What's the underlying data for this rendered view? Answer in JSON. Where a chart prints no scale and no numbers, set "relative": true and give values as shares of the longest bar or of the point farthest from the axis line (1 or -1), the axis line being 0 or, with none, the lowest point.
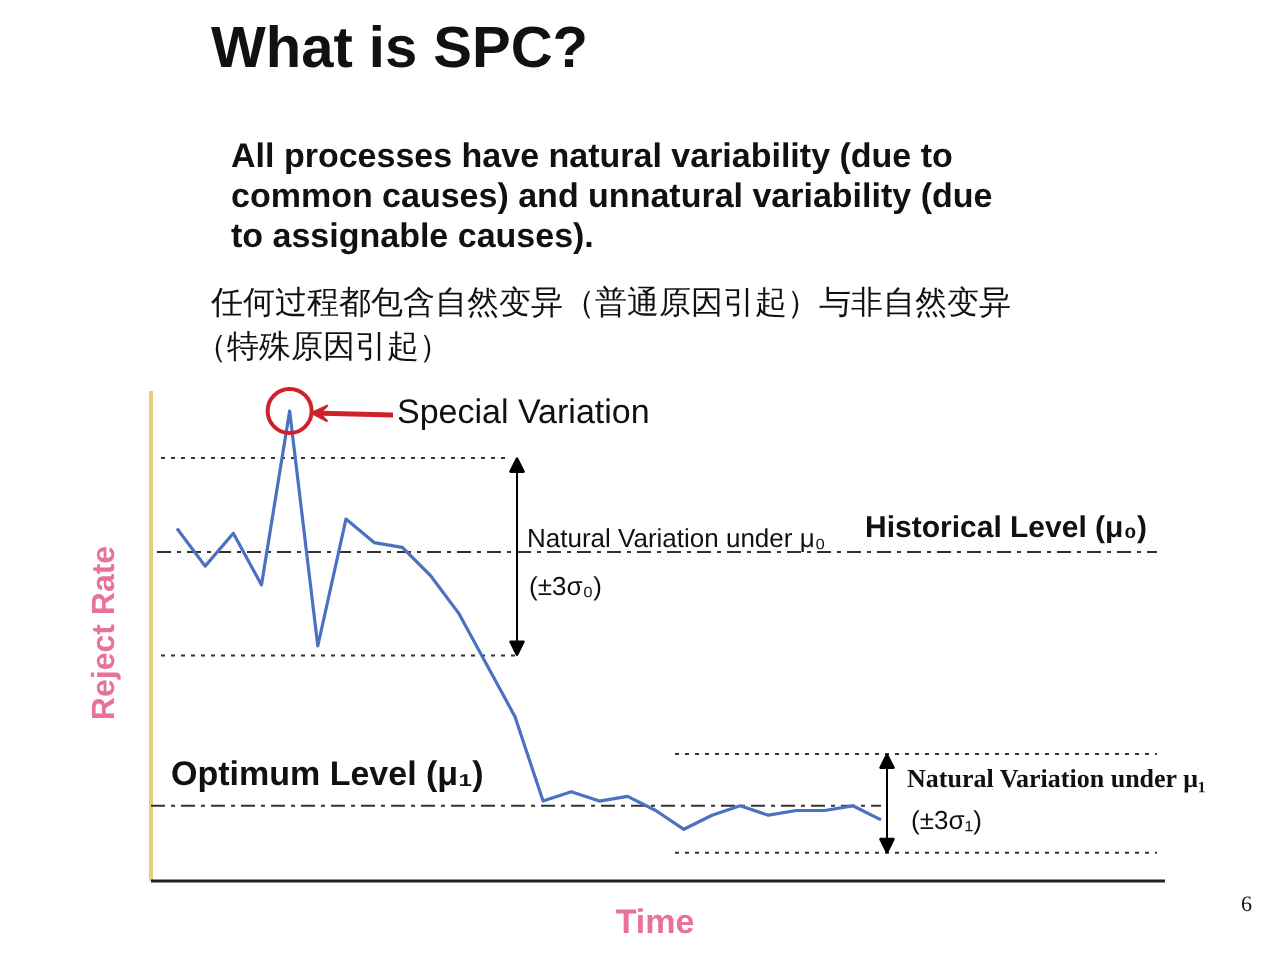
{
  "chart_data": {
    "type": "line",
    "title": "What is SPC?",
    "xlabel": "Time",
    "ylabel": "Reject Rate",
    "relative": true,
    "categories": [
      null,
      null,
      null,
      null,
      null,
      null,
      null,
      null,
      null,
      null,
      null,
      null,
      null,
      null,
      null,
      null,
      null,
      null,
      null,
      null,
      null,
      null,
      null,
      null,
      null,
      null
    ],
    "series": [
      {
        "color": "#4a72c0",
        "values": [
          0.75,
          0.67,
          0.74,
          0.63,
          1.0,
          0.5,
          0.77,
          0.72,
          0.71,
          0.65,
          0.57,
          0.46,
          0.35,
          0.17,
          0.19,
          0.17,
          0.18,
          0.15,
          0.11,
          0.14,
          0.16,
          0.14,
          0.15,
          0.15,
          0.16,
          0.13
        ]
      }
    ],
    "ref_lines": [
      {
        "axis": "y",
        "value": 0.9,
        "label": null,
        "color": "#333333",
        "line_style": "dotted"
      },
      {
        "axis": "y",
        "value": 0.7,
        "label": "Historical Level (μ₀)",
        "color": "#333333",
        "line_style": "dashed"
      },
      {
        "axis": "y",
        "value": 0.48,
        "label": null,
        "color": "#333333",
        "line_style": "dotted"
      },
      {
        "axis": "y",
        "value": 0.27,
        "label": null,
        "color": "#333333",
        "line_style": "dotted"
      },
      {
        "axis": "y",
        "value": 0.16,
        "label": "Optimum Level (μ₁)",
        "color": "#333333",
        "line_style": "dashed"
      },
      {
        "axis": "y",
        "value": 0.06,
        "label": null,
        "color": "#333333",
        "line_style": "dotted"
      }
    ],
    "annotations": [
      "All processes have natural variability (due to common causes) and unnatural variability (due to assignable causes).",
      "任何过程都包含自然变异（普通原因引起）与非自然变异（特殊原因引起）",
      "Special Variation",
      "Natural Variation under μ₀",
      "(±3σ₀)",
      "Natural Variation under μ₁",
      "(±3σ₁)",
      "6"
    ],
    "grid": false,
    "marker": "none",
    "line_style": "solid"
  }
}
